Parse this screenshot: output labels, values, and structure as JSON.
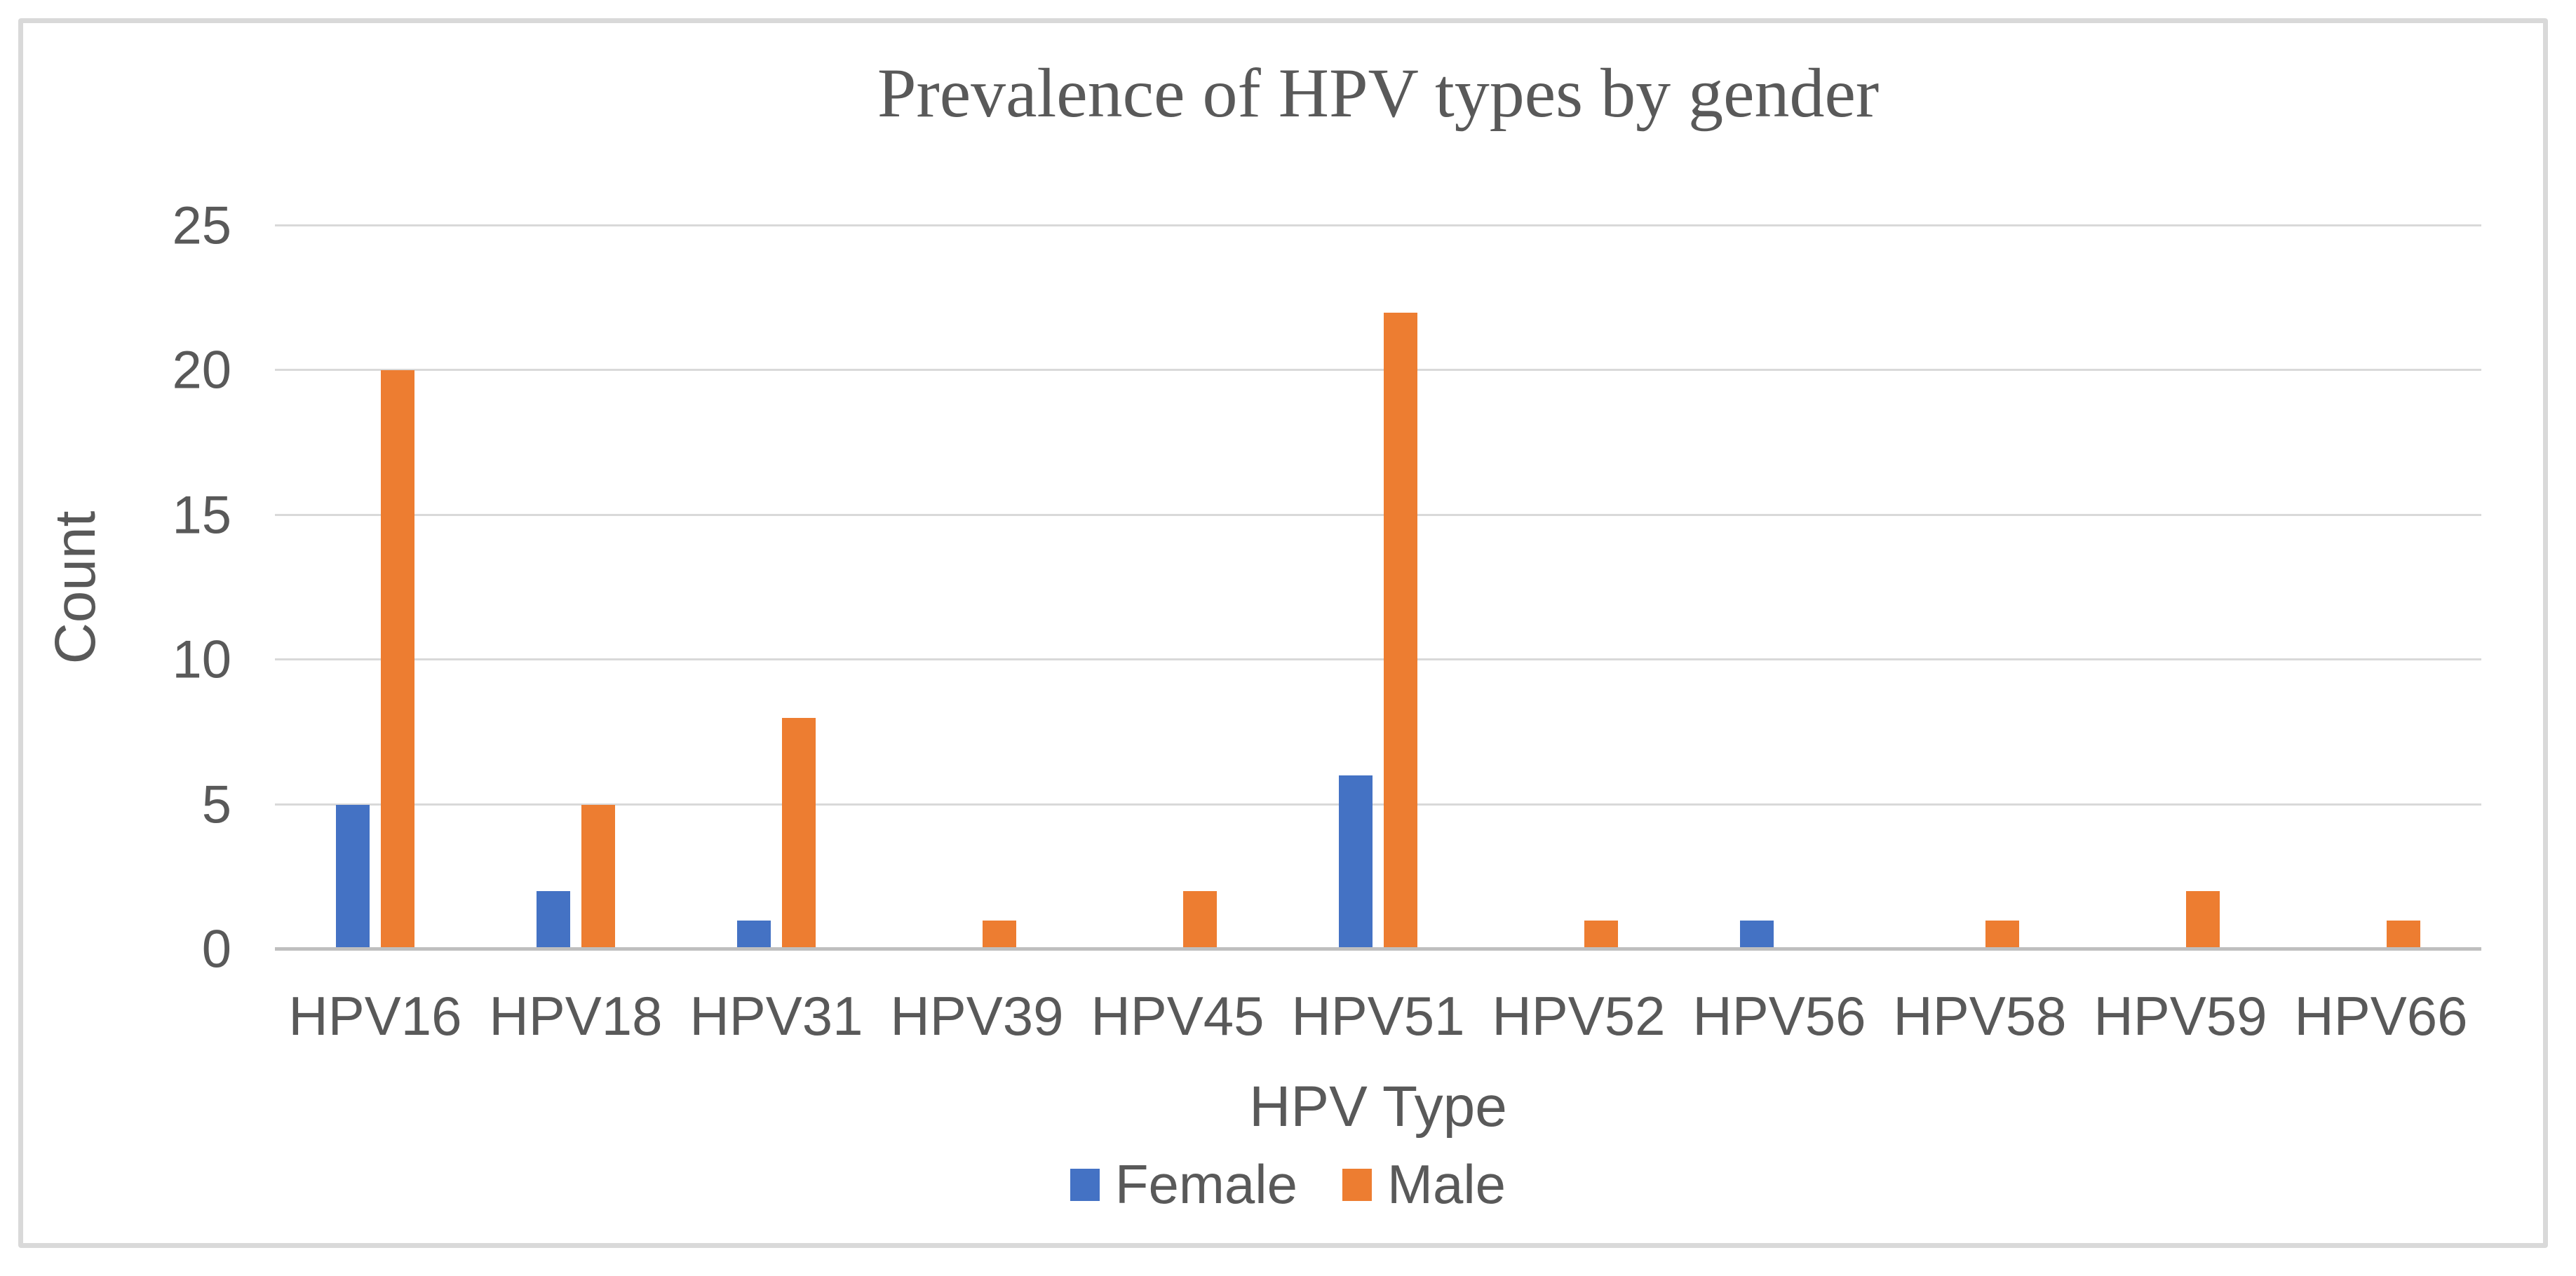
{
  "chart_data": {
    "type": "bar",
    "title": "Prevalence of HPV types by gender",
    "xlabel": "HPV Type",
    "ylabel": "Count",
    "categories": [
      "HPV16",
      "HPV18",
      "HPV31",
      "HPV39",
      "HPV45",
      "HPV51",
      "HPV52",
      "HPV56",
      "HPV58",
      "HPV59",
      "HPV66"
    ],
    "series": [
      {
        "name": "Female",
        "color": "#4472C4",
        "values": [
          5,
          2,
          1,
          0,
          0,
          6,
          0,
          1,
          0,
          0,
          0
        ]
      },
      {
        "name": "Male",
        "color": "#ED7D31",
        "values": [
          20,
          5,
          8,
          1,
          2,
          22,
          1,
          0,
          1,
          2,
          1
        ]
      }
    ],
    "ylim": [
      0,
      25
    ],
    "yticks": [
      0,
      5,
      10,
      15,
      20,
      25
    ],
    "grid": true,
    "legend_position": "bottom",
    "gridline_color": "#D9D9D9",
    "axis_line_color": "#BFBFBF",
    "text_color": "#595959",
    "background_color": "#FFFFFF"
  }
}
